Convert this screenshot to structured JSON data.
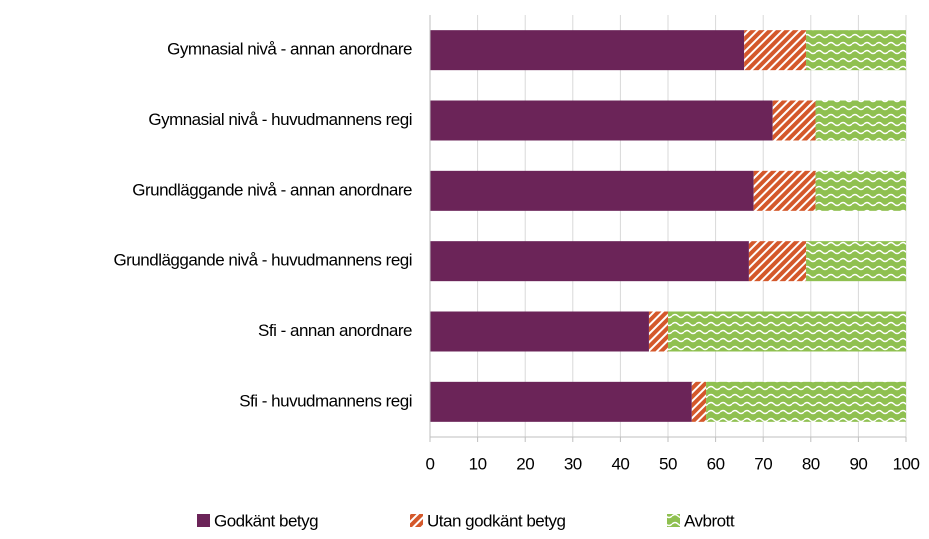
{
  "chart_data": {
    "type": "stacked-bar-horizontal",
    "categories": [
      "Gymnasial nivå - annan anordnare",
      "Gymnasial nivå - huvudmannens regi",
      "Grundläggande nivå - annan anordnare",
      "Grundläggande nivå - huvudmannens regi",
      "Sfi - annan anordnare",
      "Sfi - huvudmannens regi"
    ],
    "series": [
      {
        "name": "Godkänt betyg",
        "color": "#6b2458",
        "values": [
          66,
          72,
          68,
          67,
          46,
          55
        ]
      },
      {
        "name": "Utan godkänt betyg",
        "color": "#d4582b",
        "values": [
          13,
          9,
          13,
          12,
          4,
          3
        ]
      },
      {
        "name": "Avbrott",
        "color": "#8fc050",
        "values": [
          21,
          19,
          19,
          21,
          50,
          42
        ]
      }
    ],
    "xlim": [
      0,
      100
    ],
    "xticks": [
      0,
      10,
      20,
      30,
      40,
      50,
      60,
      70,
      80,
      90,
      100
    ],
    "grid": true,
    "legend": "bottom"
  }
}
